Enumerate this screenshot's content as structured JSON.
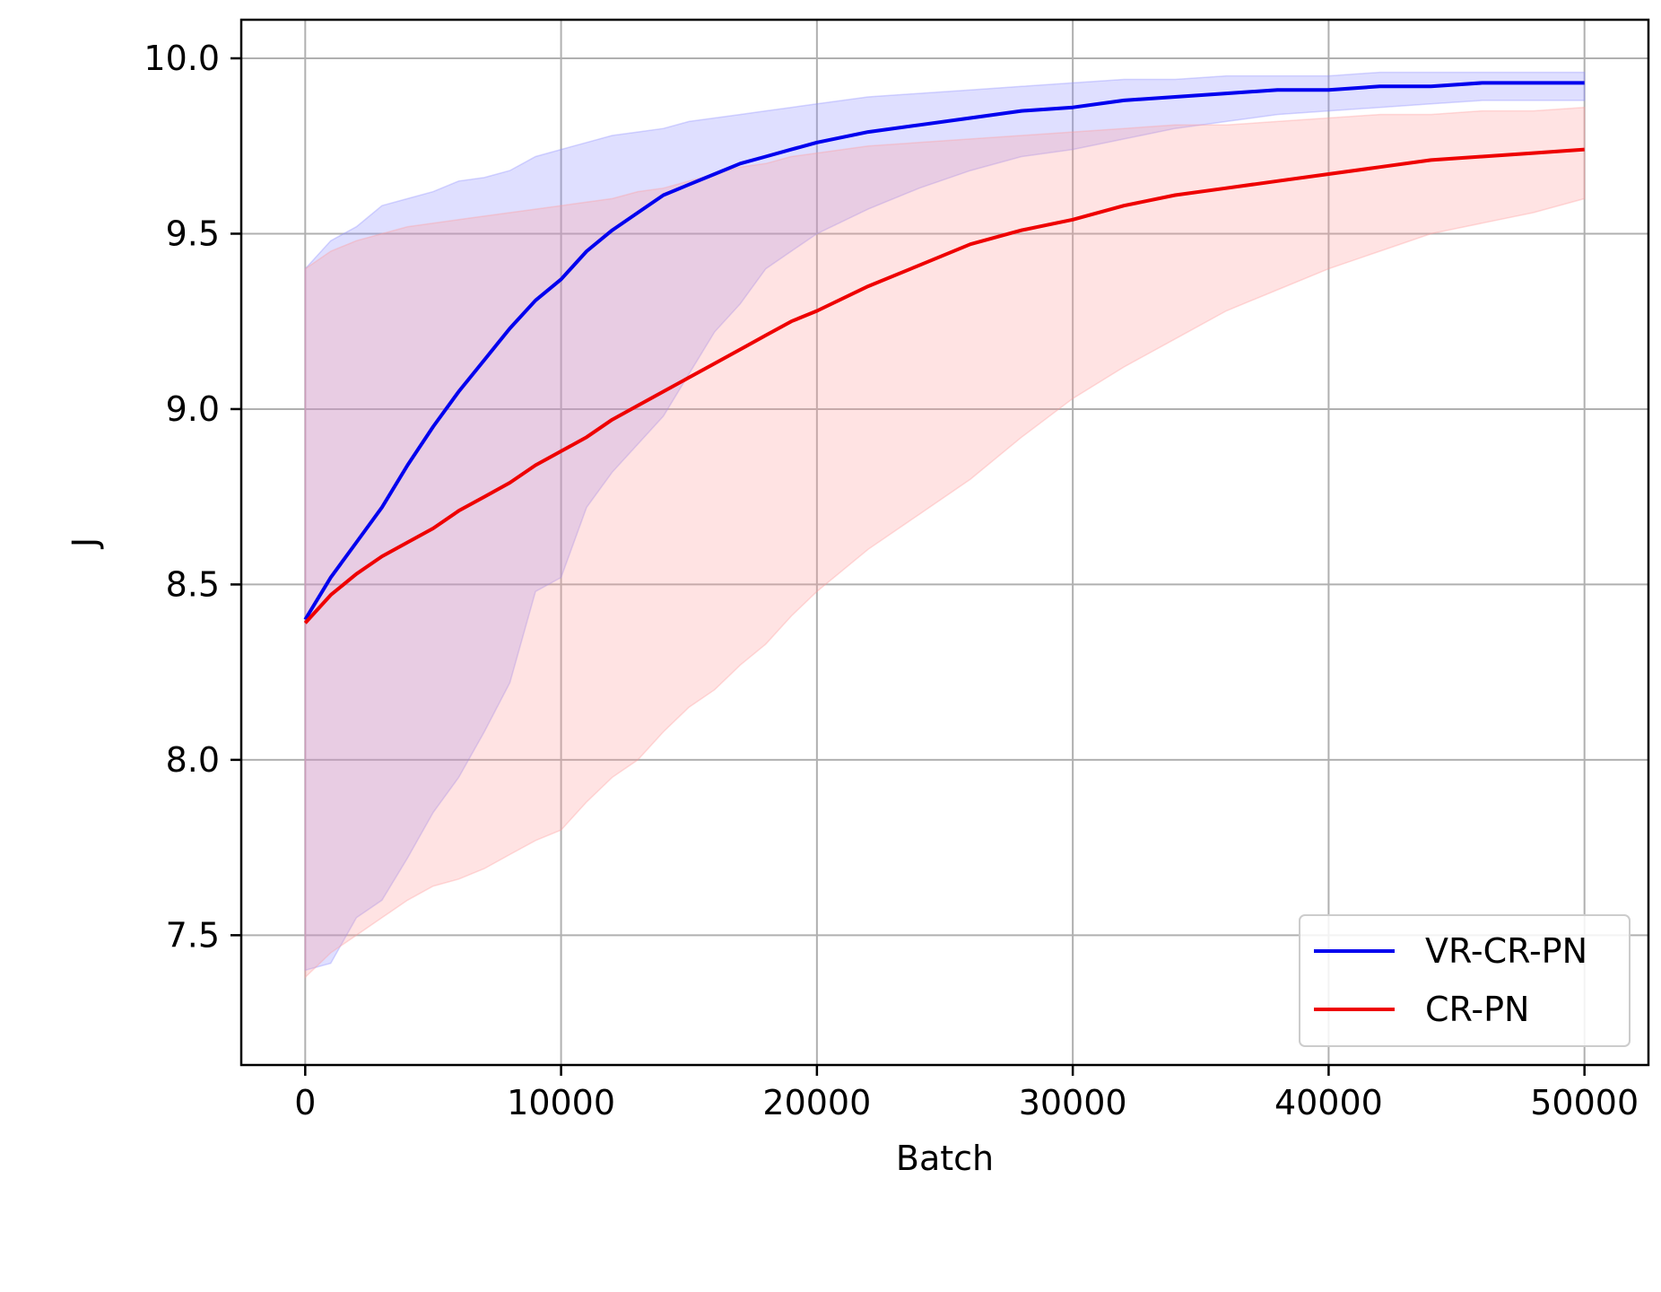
{
  "chart_data": {
    "type": "line",
    "title": "",
    "xlabel": "Batch",
    "ylabel": "J",
    "xlim": [
      -2500,
      52500
    ],
    "ylim": [
      7.13,
      10.11
    ],
    "xticks": [
      0,
      10000,
      20000,
      30000,
      40000,
      50000
    ],
    "xtick_labels": [
      "0",
      "10000",
      "20000",
      "30000",
      "40000",
      "50000"
    ],
    "yticks": [
      7.5,
      8.0,
      8.5,
      9.0,
      9.5,
      10.0
    ],
    "ytick_labels": [
      "7.5",
      "8.0",
      "8.5",
      "9.0",
      "9.5",
      "10.0"
    ],
    "grid": true,
    "legend_position": "lower right",
    "series": [
      {
        "name": "VR-CR-PN",
        "color": "#0000ee",
        "band_color": "#8c8cff",
        "x": [
          0,
          1000,
          2000,
          3000,
          4000,
          5000,
          6000,
          7000,
          8000,
          9000,
          10000,
          11000,
          12000,
          13000,
          14000,
          15000,
          16000,
          17000,
          18000,
          19000,
          20000,
          22000,
          24000,
          26000,
          28000,
          30000,
          32000,
          34000,
          36000,
          38000,
          40000,
          42000,
          44000,
          46000,
          48000,
          50000
        ],
        "values": [
          8.4,
          8.52,
          8.62,
          8.72,
          8.84,
          8.95,
          9.05,
          9.14,
          9.23,
          9.31,
          9.37,
          9.45,
          9.51,
          9.56,
          9.61,
          9.64,
          9.67,
          9.7,
          9.72,
          9.74,
          9.76,
          9.79,
          9.81,
          9.83,
          9.85,
          9.86,
          9.88,
          9.89,
          9.9,
          9.91,
          9.91,
          9.92,
          9.92,
          9.93,
          9.93,
          9.93
        ],
        "lower": [
          7.4,
          7.42,
          7.55,
          7.6,
          7.72,
          7.85,
          7.95,
          8.08,
          8.22,
          8.48,
          8.52,
          8.72,
          8.82,
          8.9,
          8.98,
          9.1,
          9.22,
          9.3,
          9.4,
          9.45,
          9.5,
          9.57,
          9.63,
          9.68,
          9.72,
          9.74,
          9.77,
          9.8,
          9.82,
          9.84,
          9.85,
          9.86,
          9.87,
          9.88,
          9.88,
          9.88
        ],
        "upper": [
          9.4,
          9.48,
          9.52,
          9.58,
          9.6,
          9.62,
          9.65,
          9.66,
          9.68,
          9.72,
          9.74,
          9.76,
          9.78,
          9.79,
          9.8,
          9.82,
          9.83,
          9.84,
          9.85,
          9.86,
          9.87,
          9.89,
          9.9,
          9.91,
          9.92,
          9.93,
          9.94,
          9.94,
          9.95,
          9.95,
          9.95,
          9.96,
          9.96,
          9.96,
          9.96,
          9.96
        ]
      },
      {
        "name": "CR-PN",
        "color": "#ee0000",
        "band_color": "#ff9c9c",
        "x": [
          0,
          1000,
          2000,
          3000,
          4000,
          5000,
          6000,
          7000,
          8000,
          9000,
          10000,
          11000,
          12000,
          13000,
          14000,
          15000,
          16000,
          17000,
          18000,
          19000,
          20000,
          22000,
          24000,
          26000,
          28000,
          30000,
          32000,
          34000,
          36000,
          38000,
          40000,
          42000,
          44000,
          46000,
          48000,
          50000
        ],
        "values": [
          8.39,
          8.47,
          8.53,
          8.58,
          8.62,
          8.66,
          8.71,
          8.75,
          8.79,
          8.84,
          8.88,
          8.92,
          8.97,
          9.01,
          9.05,
          9.09,
          9.13,
          9.17,
          9.21,
          9.25,
          9.28,
          9.35,
          9.41,
          9.47,
          9.51,
          9.54,
          9.58,
          9.61,
          9.63,
          9.65,
          9.67,
          9.69,
          9.71,
          9.72,
          9.73,
          9.74
        ],
        "lower": [
          7.38,
          7.45,
          7.5,
          7.55,
          7.6,
          7.64,
          7.66,
          7.69,
          7.73,
          7.77,
          7.8,
          7.88,
          7.95,
          8.0,
          8.08,
          8.15,
          8.2,
          8.27,
          8.33,
          8.41,
          8.48,
          8.6,
          8.7,
          8.8,
          8.92,
          9.03,
          9.12,
          9.2,
          9.28,
          9.34,
          9.4,
          9.45,
          9.5,
          9.53,
          9.56,
          9.6
        ],
        "upper": [
          9.4,
          9.45,
          9.48,
          9.5,
          9.52,
          9.53,
          9.54,
          9.55,
          9.56,
          9.57,
          9.58,
          9.59,
          9.6,
          9.62,
          9.63,
          9.65,
          9.67,
          9.69,
          9.7,
          9.72,
          9.73,
          9.75,
          9.76,
          9.77,
          9.78,
          9.79,
          9.8,
          9.81,
          9.81,
          9.82,
          9.83,
          9.84,
          9.84,
          9.85,
          9.85,
          9.86
        ]
      }
    ]
  },
  "colors": {
    "grid": "#b0b0b0",
    "axes": "#000000",
    "legend_border": "#cccccc"
  }
}
